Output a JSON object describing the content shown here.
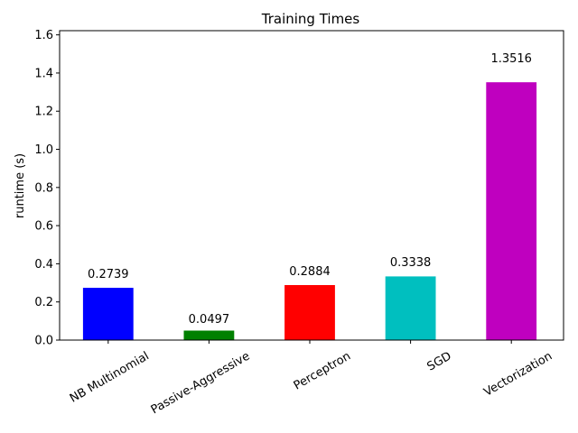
{
  "chart_data": {
    "type": "bar",
    "title": "Training Times",
    "y_label": "runtime (s)",
    "categories": [
      "NB Multinomial",
      "Passive-Aggressive",
      "Perceptron",
      "SGD",
      "Vectorization"
    ],
    "values": [
      0.2739,
      0.0497,
      0.2884,
      0.3338,
      1.3516
    ],
    "colors": [
      "#0000ff",
      "#008000",
      "#ff0000",
      "#00bfbf",
      "#bf00bf"
    ],
    "ylim": [
      0,
      1.622
    ],
    "yticks": [
      {
        "value": 0,
        "label": "0.0"
      },
      {
        "value": 0.2,
        "label": "0.2"
      },
      {
        "value": 0.4,
        "label": "0.4"
      },
      {
        "value": 0.6,
        "label": "0.6"
      },
      {
        "value": 0.8,
        "label": "0.8"
      },
      {
        "value": 1.0,
        "label": "1.0"
      },
      {
        "value": 1.2,
        "label": "1.2"
      },
      {
        "value": 1.4,
        "label": "1.4"
      },
      {
        "value": 1.6,
        "label": "1.6"
      }
    ],
    "grid": false
  }
}
